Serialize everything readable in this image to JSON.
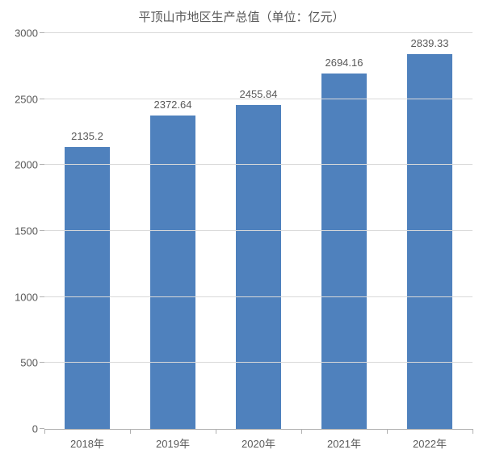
{
  "chart": {
    "type": "bar",
    "title": "平顶山市地区生产总值（单位：亿元）",
    "title_fontsize": 15,
    "title_color": "#595959",
    "categories": [
      "2018年",
      "2019年",
      "2020年",
      "2021年",
      "2022年"
    ],
    "values": [
      2135.2,
      2372.64,
      2455.84,
      2694.16,
      2839.33
    ],
    "value_labels": [
      "2135.2",
      "2372.64",
      "2455.84",
      "2694.16",
      "2839.33"
    ],
    "bar_color": "#4f81bd",
    "ylim": [
      0,
      3000
    ],
    "ytick_step": 500,
    "yticks": [
      0,
      500,
      1000,
      1500,
      2000,
      2500,
      3000
    ],
    "bar_width_ratio": 0.52,
    "background_color": "#ffffff",
    "grid_color": "#d9d9d9",
    "axis_color": "#b0b0b0",
    "text_color": "#595959",
    "tick_fontsize": 13,
    "label_fontsize": 13,
    "data_label_fontsize": 13
  }
}
